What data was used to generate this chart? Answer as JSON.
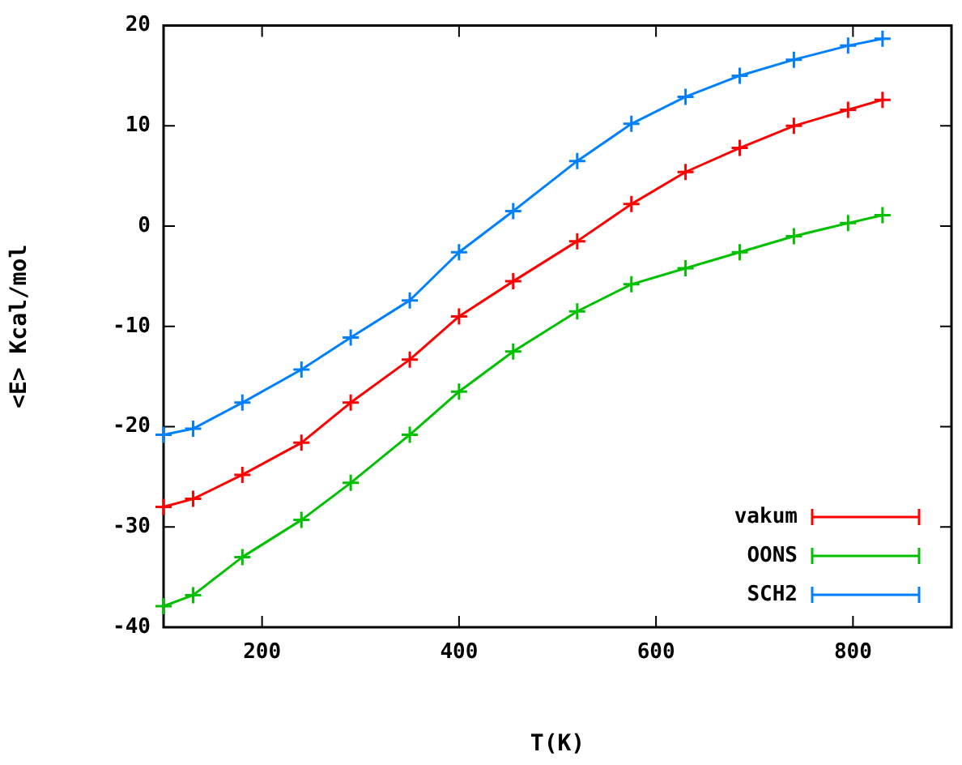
{
  "chart_data": {
    "type": "line",
    "xlabel": "T(K)",
    "ylabel": "<E> Kcal/mol",
    "x": [
      100,
      130,
      180,
      240,
      290,
      350,
      400,
      455,
      520,
      575,
      630,
      685,
      740,
      795,
      830
    ],
    "series": [
      {
        "name": "vakum",
        "color": "#ff0000",
        "marker": "cross",
        "values": [
          -28.0,
          -27.2,
          -24.8,
          -21.6,
          -17.6,
          -13.3,
          -9.0,
          -5.5,
          -1.5,
          2.2,
          5.4,
          7.8,
          10.0,
          11.6,
          12.6
        ]
      },
      {
        "name": "OONS",
        "color": "#00c000",
        "marker": "cross",
        "values": [
          -37.9,
          -36.8,
          -33.0,
          -29.3,
          -25.6,
          -20.8,
          -16.5,
          -12.5,
          -8.5,
          -5.8,
          -4.2,
          -2.6,
          -1.0,
          0.3,
          1.1
        ]
      },
      {
        "name": "SCH2",
        "color": "#0080ff",
        "marker": "cross",
        "values": [
          -20.8,
          -20.2,
          -17.6,
          -14.3,
          -11.1,
          -7.4,
          -2.6,
          1.5,
          6.5,
          10.2,
          12.9,
          15.0,
          16.6,
          18.0,
          18.7
        ]
      }
    ],
    "xlim": [
      100,
      900
    ],
    "xticks": [
      200,
      400,
      600,
      800
    ],
    "ylim": [
      -40,
      20
    ],
    "yticks": [
      -40,
      -30,
      -20,
      -10,
      0,
      10,
      20
    ],
    "grid": false,
    "legend": "bottom right"
  }
}
